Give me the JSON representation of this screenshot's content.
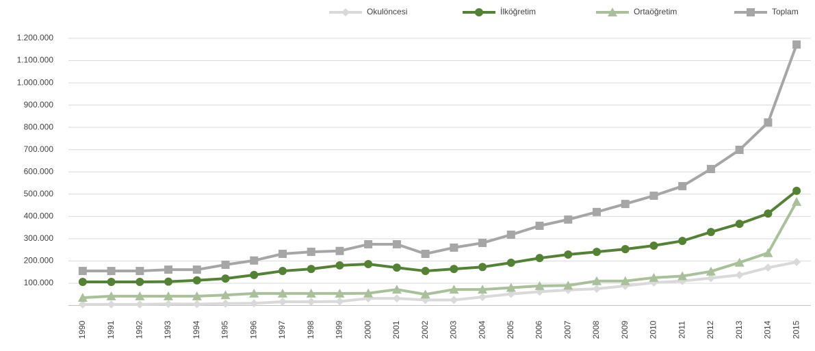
{
  "chart_data": {
    "type": "line",
    "categories": [
      "1990",
      "1991",
      "1992",
      "1993",
      "1994",
      "1995",
      "1996",
      "1997",
      "1998",
      "1999",
      "2000",
      "2001",
      "2002",
      "2003",
      "2004",
      "2005",
      "2006",
      "2007",
      "2008",
      "2009",
      "2010",
      "2011",
      "2012",
      "2013",
      "2014",
      "2015"
    ],
    "series": [
      {
        "name": "Okulöncesi",
        "color": "#d9d9d9",
        "marker": "diamond",
        "values": [
          5000,
          5000,
          5000,
          7000,
          6000,
          9000,
          10000,
          17000,
          17000,
          18000,
          32000,
          32000,
          25000,
          25000,
          38000,
          52000,
          62000,
          70000,
          75000,
          88000,
          103000,
          110000,
          123000,
          137000,
          170000,
          195000
        ]
      },
      {
        "name": "İlköğretim",
        "color": "#548235",
        "marker": "circle",
        "values": [
          106000,
          106000,
          106000,
          107000,
          113000,
          121000,
          137000,
          155000,
          164000,
          180000,
          186000,
          170000,
          155000,
          164000,
          173000,
          192000,
          213000,
          229000,
          241000,
          253000,
          269000,
          290000,
          330000,
          367000,
          413000,
          515000
        ]
      },
      {
        "name": "Ortaöğretim",
        "color": "#a9c09a",
        "marker": "triangle",
        "values": [
          35000,
          42000,
          42000,
          42000,
          42000,
          47000,
          54000,
          54000,
          54000,
          54000,
          55000,
          72000,
          50000,
          72000,
          72000,
          80000,
          88000,
          90000,
          110000,
          110000,
          125000,
          132000,
          153000,
          193000,
          236000,
          466000
        ]
      },
      {
        "name": "Toplam",
        "color": "#a6a6a6",
        "marker": "square",
        "values": [
          155000,
          155000,
          155000,
          161000,
          161000,
          183000,
          202000,
          232000,
          241000,
          245000,
          275000,
          275000,
          232000,
          260000,
          281000,
          318000,
          358000,
          386000,
          420000,
          456000,
          493000,
          536000,
          613000,
          699000,
          822000,
          1172000
        ]
      }
    ],
    "ylim": [
      0,
      1200000
    ],
    "yticks": [
      {
        "value": 100000,
        "label": "100.000"
      },
      {
        "value": 200000,
        "label": "200.000"
      },
      {
        "value": 300000,
        "label": "300.000"
      },
      {
        "value": 400000,
        "label": "400.000"
      },
      {
        "value": 500000,
        "label": "500.000"
      },
      {
        "value": 600000,
        "label": "600.000"
      },
      {
        "value": 700000,
        "label": "700.000"
      },
      {
        "value": 800000,
        "label": "800.000"
      },
      {
        "value": 900000,
        "label": "900.000"
      },
      {
        "value": 1000000,
        "label": "1.000.000"
      },
      {
        "value": 1100000,
        "label": "1.100.000"
      },
      {
        "value": 1200000,
        "label": "1.200.000"
      }
    ],
    "grid": true,
    "legend": "top-right"
  }
}
